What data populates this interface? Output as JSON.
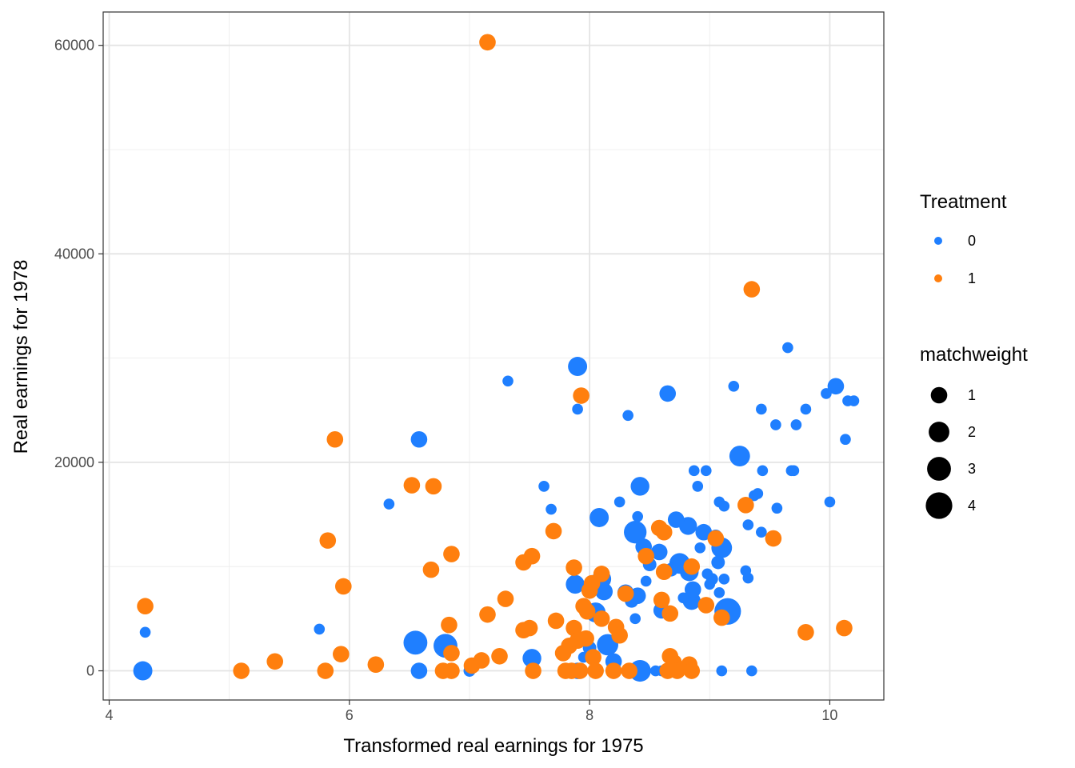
{
  "chart_data": {
    "type": "scatter",
    "xlabel": "Transformed real earnings for 1975",
    "ylabel": "Real earnings for 1978",
    "xlim": [
      3.95,
      10.45
    ],
    "ylim": [
      -2800,
      63200
    ],
    "x_ticks": [
      4,
      6,
      8,
      10
    ],
    "y_ticks": [
      0,
      20000,
      40000,
      60000
    ],
    "x_tick_labels": [
      "4",
      "6",
      "8",
      "10"
    ],
    "y_tick_labels": [
      "0",
      "20000",
      "40000",
      "60000"
    ],
    "grid": true,
    "legend_placement": "right",
    "color_legend": {
      "title": "Treatment",
      "entries": [
        {
          "label": "0",
          "color": "#1f7fff"
        },
        {
          "label": "1",
          "color": "#ff7f0e"
        }
      ]
    },
    "size_legend": {
      "title": "matchweight",
      "entries": [
        {
          "label": "1",
          "value": 1
        },
        {
          "label": "2",
          "value": 2
        },
        {
          "label": "3",
          "value": 3
        },
        {
          "label": "4",
          "value": 4
        }
      ]
    },
    "series": [
      {
        "name": "0",
        "color": "#1f7fff",
        "points": [
          [
            4.28,
            0,
            1.6
          ],
          [
            4.3,
            3700,
            0.2
          ],
          [
            5.75,
            4000,
            0.2
          ],
          [
            6.33,
            16000,
            0.2
          ],
          [
            6.55,
            2700,
            3.0
          ],
          [
            6.58,
            22200,
            1.0
          ],
          [
            6.58,
            0,
            1.0
          ],
          [
            6.8,
            2400,
            3.0
          ],
          [
            7.0,
            0,
            0.3
          ],
          [
            7.32,
            27800,
            0.2
          ],
          [
            7.52,
            1200,
            1.5
          ],
          [
            7.62,
            17700,
            0.2
          ],
          [
            7.68,
            15500,
            0.2
          ],
          [
            7.88,
            8300,
            1.5
          ],
          [
            7.9,
            29200,
            1.6
          ],
          [
            7.9,
            25100,
            0.2
          ],
          [
            7.9,
            0,
            1.0
          ],
          [
            7.95,
            1300,
            0.2
          ],
          [
            8.0,
            2200,
            0.5
          ],
          [
            8.05,
            5600,
            1.8
          ],
          [
            8.08,
            14700,
            1.6
          ],
          [
            8.1,
            8800,
            1.6
          ],
          [
            8.12,
            7600,
            1.2
          ],
          [
            8.15,
            2500,
            2.2
          ],
          [
            8.2,
            900,
            1.0
          ],
          [
            8.25,
            16200,
            0.2
          ],
          [
            8.3,
            7500,
            1.0
          ],
          [
            8.32,
            24500,
            0.2
          ],
          [
            8.35,
            6700,
            0.5
          ],
          [
            8.38,
            13300,
            2.6
          ],
          [
            8.38,
            5000,
            0.2
          ],
          [
            8.4,
            14800,
            0.2
          ],
          [
            8.4,
            7200,
            1.0
          ],
          [
            8.42,
            17700,
            1.5
          ],
          [
            8.42,
            0,
            2.3
          ],
          [
            8.45,
            11900,
            1.0
          ],
          [
            8.47,
            8600,
            0.2
          ],
          [
            8.5,
            10200,
            0.5
          ],
          [
            8.55,
            0,
            0.2
          ],
          [
            8.58,
            11400,
            1.0
          ],
          [
            8.6,
            5800,
            1.0
          ],
          [
            8.6,
            0,
            0.2
          ],
          [
            8.65,
            26600,
            1.0
          ],
          [
            8.68,
            9700,
            0.5
          ],
          [
            8.72,
            14500,
            1.0
          ],
          [
            8.75,
            10300,
            2.0
          ],
          [
            8.78,
            7000,
            0.2
          ],
          [
            8.82,
            13900,
            1.3
          ],
          [
            8.83,
            9500,
            1.5
          ],
          [
            8.85,
            6700,
            1.3
          ],
          [
            8.86,
            7800,
            1.0
          ],
          [
            8.87,
            19200,
            0.2
          ],
          [
            8.9,
            17700,
            0.2
          ],
          [
            8.92,
            11800,
            0.2
          ],
          [
            8.95,
            13300,
            1.0
          ],
          [
            8.97,
            19200,
            0.2
          ],
          [
            8.98,
            9300,
            0.2
          ],
          [
            9.0,
            8300,
            0.2
          ],
          [
            9.02,
            8800,
            0.3
          ],
          [
            9.05,
            12900,
            0.5
          ],
          [
            9.07,
            10400,
            0.5
          ],
          [
            9.08,
            7500,
            0.2
          ],
          [
            9.08,
            16200,
            0.2
          ],
          [
            9.1,
            0,
            0.2
          ],
          [
            9.1,
            11800,
            2.0
          ],
          [
            9.12,
            15800,
            0.2
          ],
          [
            9.12,
            8800,
            0.2
          ],
          [
            9.15,
            5700,
            4.0
          ],
          [
            9.2,
            27300,
            0.2
          ],
          [
            9.25,
            20600,
            2.0
          ],
          [
            9.28,
            15800,
            0.2
          ],
          [
            9.3,
            9600,
            0.2
          ],
          [
            9.32,
            14000,
            0.2
          ],
          [
            9.32,
            8900,
            0.2
          ],
          [
            9.35,
            0,
            0.2
          ],
          [
            9.37,
            16800,
            0.2
          ],
          [
            9.4,
            17000,
            0.2
          ],
          [
            9.43,
            13300,
            0.2
          ],
          [
            9.43,
            25100,
            0.2
          ],
          [
            9.44,
            19200,
            0.2
          ],
          [
            9.55,
            23600,
            0.2
          ],
          [
            9.56,
            15600,
            0.2
          ],
          [
            9.65,
            31000,
            0.2
          ],
          [
            9.68,
            19200,
            0.2
          ],
          [
            9.7,
            19200,
            0.2
          ],
          [
            9.72,
            23600,
            0.2
          ],
          [
            9.8,
            25100,
            0.2
          ],
          [
            9.97,
            26600,
            0.2
          ],
          [
            10.0,
            16200,
            0.2
          ],
          [
            10.05,
            27300,
            1.0
          ],
          [
            10.13,
            22200,
            0.2
          ],
          [
            10.15,
            25900,
            0.2
          ],
          [
            10.2,
            25900,
            0.2
          ]
        ]
      },
      {
        "name": "1",
        "color": "#ff7f0e",
        "points": [
          [
            4.3,
            6200,
            1.0
          ],
          [
            5.1,
            0,
            1.0
          ],
          [
            5.38,
            900,
            1.0
          ],
          [
            5.8,
            0,
            1.0
          ],
          [
            5.82,
            12500,
            1.0
          ],
          [
            5.88,
            22200,
            1.0
          ],
          [
            5.93,
            1600,
            1.0
          ],
          [
            5.95,
            8100,
            1.0
          ],
          [
            6.22,
            600,
            1.0
          ],
          [
            6.52,
            17800,
            1.0
          ],
          [
            6.68,
            9700,
            1.0
          ],
          [
            6.7,
            17700,
            1.0
          ],
          [
            6.78,
            0,
            1.0
          ],
          [
            6.83,
            4400,
            1.0
          ],
          [
            6.85,
            1700,
            1.0
          ],
          [
            6.85,
            11200,
            1.0
          ],
          [
            6.85,
            0,
            1.0
          ],
          [
            7.02,
            500,
            1.0
          ],
          [
            7.1,
            1000,
            1.0
          ],
          [
            7.15,
            60300,
            1.0
          ],
          [
            7.15,
            5400,
            1.0
          ],
          [
            7.25,
            1400,
            1.0
          ],
          [
            7.3,
            6900,
            1.0
          ],
          [
            7.45,
            10400,
            1.0
          ],
          [
            7.45,
            3900,
            1.0
          ],
          [
            7.5,
            4100,
            1.0
          ],
          [
            7.52,
            11000,
            1.0
          ],
          [
            7.53,
            0,
            1.0
          ],
          [
            7.7,
            13400,
            1.0
          ],
          [
            7.72,
            4800,
            1.0
          ],
          [
            7.78,
            1700,
            1.0
          ],
          [
            7.8,
            0,
            1.0
          ],
          [
            7.83,
            2400,
            1.0
          ],
          [
            7.85,
            0,
            1.0
          ],
          [
            7.87,
            4100,
            1.0
          ],
          [
            7.87,
            9900,
            1.0
          ],
          [
            7.9,
            2900,
            1.0
          ],
          [
            7.92,
            0,
            1.0
          ],
          [
            7.93,
            26400,
            1.0
          ],
          [
            7.95,
            6200,
            1.0
          ],
          [
            7.97,
            3100,
            1.0
          ],
          [
            7.98,
            5700,
            1.0
          ],
          [
            8.0,
            7700,
            1.0
          ],
          [
            8.02,
            8400,
            1.0
          ],
          [
            8.03,
            1300,
            1.0
          ],
          [
            8.05,
            0,
            1.0
          ],
          [
            8.1,
            9300,
            1.0
          ],
          [
            8.1,
            5000,
            1.0
          ],
          [
            8.2,
            0,
            1.0
          ],
          [
            8.22,
            4200,
            1.0
          ],
          [
            8.25,
            3400,
            1.0
          ],
          [
            8.3,
            7400,
            1.0
          ],
          [
            8.33,
            0,
            1.0
          ],
          [
            8.47,
            11000,
            1.0
          ],
          [
            8.58,
            13700,
            1.0
          ],
          [
            8.62,
            13300,
            1.0
          ],
          [
            8.6,
            6800,
            1.0
          ],
          [
            8.62,
            9500,
            1.0
          ],
          [
            8.65,
            0,
            1.0
          ],
          [
            8.67,
            5500,
            1.0
          ],
          [
            8.67,
            1400,
            1.0
          ],
          [
            8.7,
            800,
            1.0
          ],
          [
            8.73,
            0,
            1.0
          ],
          [
            8.83,
            600,
            1.0
          ],
          [
            8.85,
            0,
            1.0
          ],
          [
            8.85,
            10000,
            1.0
          ],
          [
            8.97,
            6300,
            1.0
          ],
          [
            9.05,
            12700,
            1.0
          ],
          [
            9.1,
            5100,
            1.0
          ],
          [
            9.3,
            15900,
            1.0
          ],
          [
            9.35,
            36600,
            1.0
          ],
          [
            9.53,
            12700,
            1.0
          ],
          [
            9.8,
            3700,
            1.0
          ],
          [
            10.12,
            4100,
            1.0
          ]
        ]
      }
    ]
  }
}
